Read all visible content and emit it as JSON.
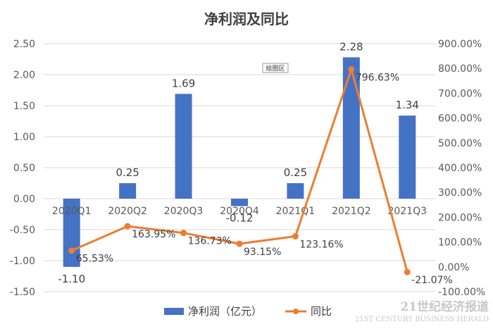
{
  "chart_data": {
    "type": "bar+line",
    "title": "净利润及同比",
    "categories": [
      "2020Q1",
      "2020Q2",
      "2020Q3",
      "2020Q4",
      "2021Q1",
      "2021Q2",
      "2021Q3"
    ],
    "series": [
      {
        "name": "净利润（亿元）",
        "type": "bar",
        "axis": "left",
        "values": [
          -1.1,
          0.25,
          1.69,
          -0.12,
          0.25,
          2.28,
          1.34
        ],
        "labels": [
          "-1.10",
          "0.25",
          "1.69",
          "-0.12",
          "0.25",
          "2.28",
          "1.34"
        ],
        "color": "#4472C4"
      },
      {
        "name": "同比",
        "type": "line",
        "axis": "right",
        "values": [
          65.53,
          163.95,
          136.73,
          93.15,
          123.16,
          796.63,
          -21.07
        ],
        "labels": [
          "65.53%",
          "163.95%",
          "136.73%",
          "93.15%",
          "123.16%",
          "796.63%",
          "-21.07%"
        ],
        "color": "#ED7D31"
      }
    ],
    "y_left": {
      "min": -1.5,
      "max": 2.5,
      "step": 0.5,
      "ticks": [
        "-1.50",
        "-1.00",
        "-0.50",
        "0.00",
        "0.50",
        "1.00",
        "1.50",
        "2.00",
        "2.50"
      ]
    },
    "y_right": {
      "min": -100,
      "max": 900,
      "step": 100,
      "ticks": [
        "-100.00%",
        "0.00%",
        "100.00%",
        "200.00%",
        "300.00%",
        "400.00%",
        "500.00%",
        "600.00%",
        "700.00%",
        "800.00%",
        "900.00%"
      ]
    },
    "grid": true,
    "legend_position": "bottom"
  },
  "tooltip": "绘图区",
  "watermark": {
    "main": "21世纪经济报道",
    "sub": "21ST CENTURY BUSINESS HERALD"
  }
}
